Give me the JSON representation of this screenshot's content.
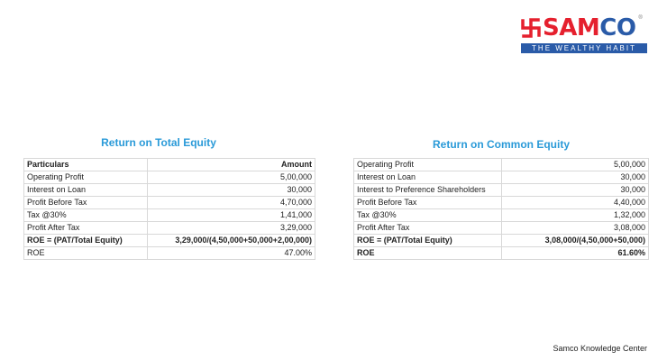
{
  "logo": {
    "brand_left": "SAM",
    "brand_right": "CO",
    "tagline": "THE WEALTHY HABIT",
    "registered": "®",
    "colors": {
      "red": "#e5202e",
      "blue": "#2a5ba8"
    }
  },
  "left": {
    "title": "Return on Total Equity",
    "rows": [
      {
        "label": "Particulars",
        "value": "Amount",
        "bold": true
      },
      {
        "label": "Operating Profit",
        "value": "5,00,000"
      },
      {
        "label": "Interest on Loan",
        "value": "30,000"
      },
      {
        "label": "Profit Before Tax",
        "value": "4,70,000"
      },
      {
        "label": "Tax @30%",
        "value": "1,41,000"
      },
      {
        "label": "Profit After Tax",
        "value": "3,29,000"
      },
      {
        "label": "ROE = (PAT/Total Equity)",
        "value": "3,29,000/(4,50,000+50,000+2,00,000)",
        "bold": true
      },
      {
        "label": "ROE",
        "value": "47.00%"
      }
    ]
  },
  "right": {
    "title": "Return on Common Equity",
    "rows": [
      {
        "label": "Operating Profit",
        "value": "5,00,000"
      },
      {
        "label": "Interest on Loan",
        "value": "30,000"
      },
      {
        "label": "Interest to Preference Shareholders",
        "value": "30,000"
      },
      {
        "label": "Profit Before Tax",
        "value": "4,40,000"
      },
      {
        "label": "Tax @30%",
        "value": "1,32,000"
      },
      {
        "label": "Profit After Tax",
        "value": "3,08,000"
      },
      {
        "label": "ROE = (PAT/Total Equity)",
        "value": "3,08,000/(4,50,000+50,000)",
        "bold": true
      },
      {
        "label": "ROE",
        "value": "61.60%",
        "bold": true
      }
    ]
  },
  "footer": "Samco Knowledge Center"
}
